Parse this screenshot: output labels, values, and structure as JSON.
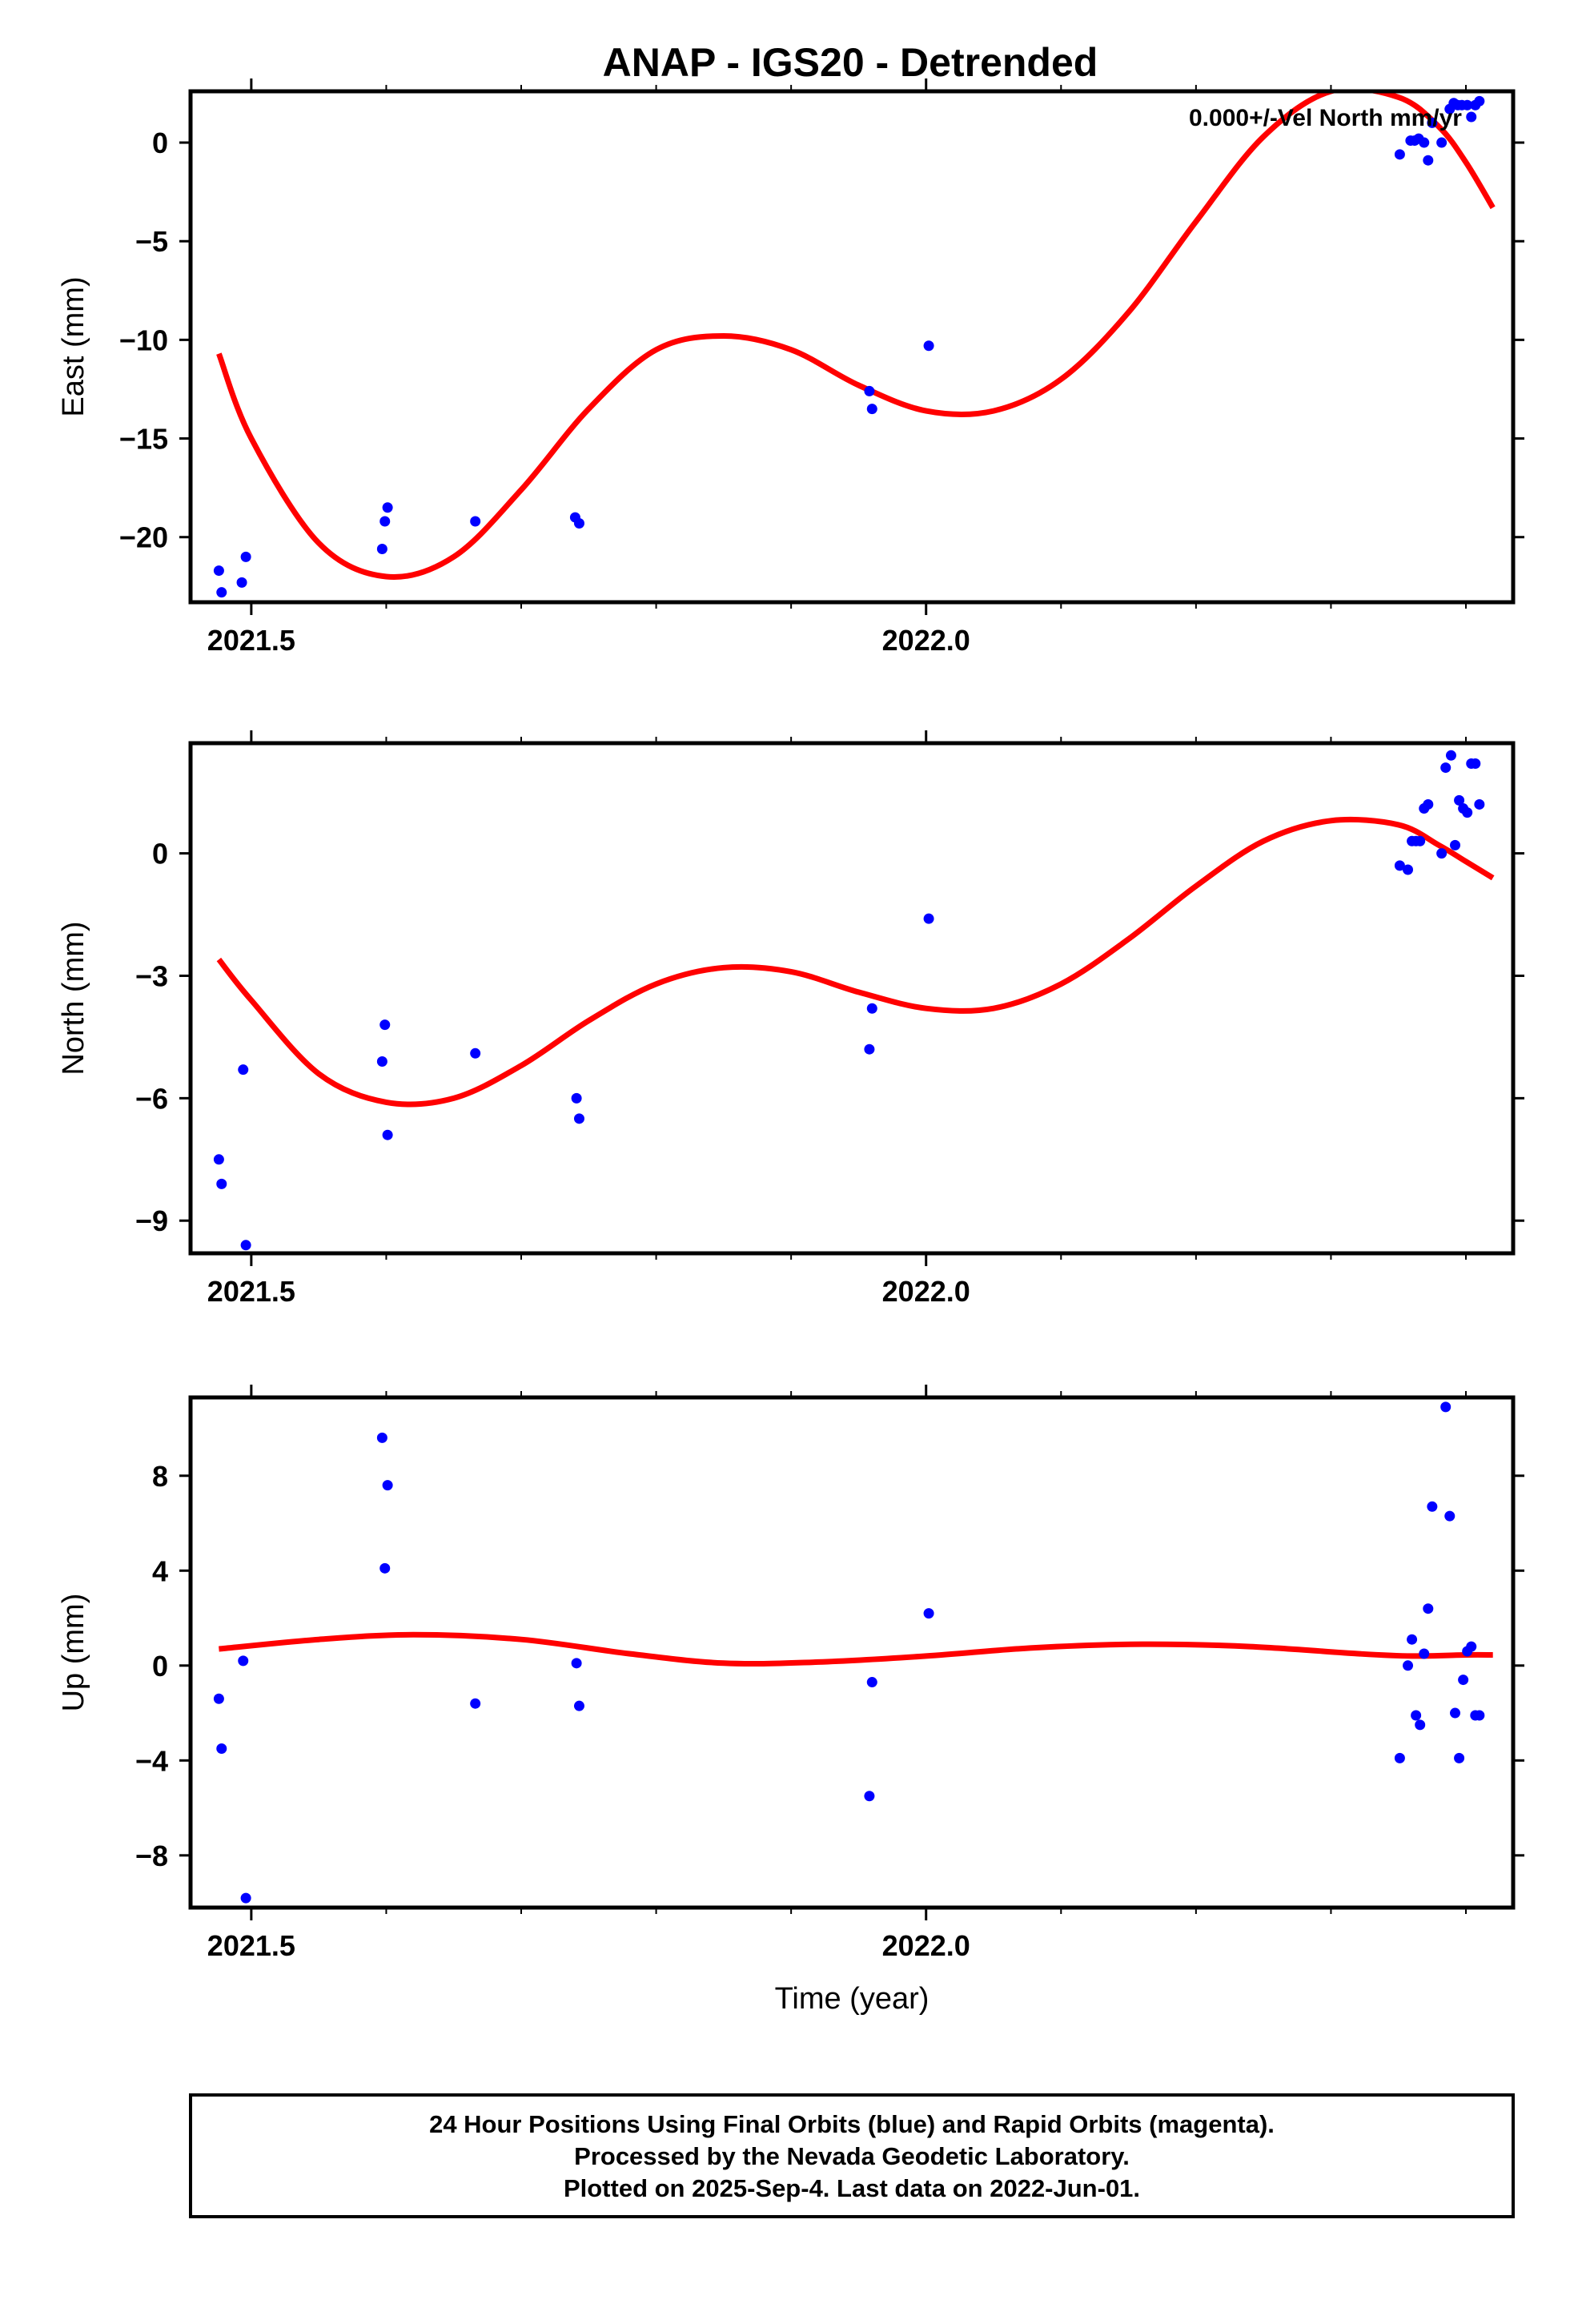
{
  "title": "ANAP - IGS20 - Detrended",
  "xlabel": "Time (year)",
  "footer": {
    "lines": [
      "24 Hour Positions Using Final Orbits (blue) and Rapid Orbits (magenta).",
      "Processed by the Nevada Geodetic Laboratory.",
      "Plotted on 2025-Sep-4. Last data on 2022-Jun-01."
    ]
  },
  "colors": {
    "points": "#0000ff",
    "fit": "#ff0000"
  },
  "chart_data": [
    {
      "type": "scatter",
      "name": "east",
      "ylabel": "East (mm)",
      "annotation": "0.000+/-Vel North mm/yr",
      "xlim": [
        2021.455,
        2022.435
      ],
      "ylim": [
        -23.3,
        2.6
      ],
      "xticks": [
        2021.5,
        2022.0
      ],
      "xtick_labels": [
        "2021.5",
        "2022.0"
      ],
      "xminor": [
        2021.6,
        2021.7,
        2021.8,
        2021.9,
        2022.1,
        2022.2,
        2022.3,
        2022.4
      ],
      "yticks": [
        0,
        -5,
        -10,
        -15,
        -20
      ],
      "ytick_labels": [
        "0",
        "−5",
        "−10",
        "−15",
        "−20"
      ],
      "points": [
        [
          2021.476,
          -21.7
        ],
        [
          2021.478,
          -22.8
        ],
        [
          2021.493,
          -22.3
        ],
        [
          2021.496,
          -21.0
        ],
        [
          2021.597,
          -20.6
        ],
        [
          2021.599,
          -19.2
        ],
        [
          2021.601,
          -18.5
        ],
        [
          2021.666,
          -19.2
        ],
        [
          2021.74,
          -19.0
        ],
        [
          2021.743,
          -19.3
        ],
        [
          2021.958,
          -12.6
        ],
        [
          2021.96,
          -13.5
        ],
        [
          2022.002,
          -10.3
        ],
        [
          2022.351,
          -0.6
        ],
        [
          2022.359,
          0.1
        ],
        [
          2022.362,
          0.1
        ],
        [
          2022.365,
          0.2
        ],
        [
          2022.369,
          0.0
        ],
        [
          2022.372,
          -0.9
        ],
        [
          2022.375,
          1.0
        ],
        [
          2022.382,
          0.0
        ],
        [
          2022.388,
          1.7
        ],
        [
          2022.391,
          2.0
        ],
        [
          2022.394,
          1.9
        ],
        [
          2022.397,
          1.9
        ],
        [
          2022.401,
          1.9
        ],
        [
          2022.404,
          1.3
        ],
        [
          2022.407,
          1.9
        ],
        [
          2022.41,
          2.1
        ]
      ],
      "fit": [
        [
          2021.476,
          -10.7
        ],
        [
          2021.5,
          -15.0
        ],
        [
          2021.55,
          -20.3
        ],
        [
          2021.6,
          -22.0
        ],
        [
          2021.65,
          -21.0
        ],
        [
          2021.7,
          -17.6
        ],
        [
          2021.75,
          -13.5
        ],
        [
          2021.8,
          -10.5
        ],
        [
          2021.85,
          -9.8
        ],
        [
          2021.9,
          -10.5
        ],
        [
          2021.95,
          -12.3
        ],
        [
          2022.0,
          -13.6
        ],
        [
          2022.05,
          -13.6
        ],
        [
          2022.1,
          -12.0
        ],
        [
          2022.15,
          -8.6
        ],
        [
          2022.2,
          -4.0
        ],
        [
          2022.25,
          0.3
        ],
        [
          2022.3,
          2.6
        ],
        [
          2022.35,
          2.3
        ],
        [
          2022.38,
          0.8
        ],
        [
          2022.4,
          -1.0
        ],
        [
          2022.42,
          -3.3
        ]
      ]
    },
    {
      "type": "scatter",
      "name": "north",
      "ylabel": "North (mm)",
      "xlim": [
        2021.455,
        2022.435
      ],
      "ylim": [
        -9.8,
        2.7
      ],
      "xticks": [
        2021.5,
        2022.0
      ],
      "xtick_labels": [
        "2021.5",
        "2022.0"
      ],
      "xminor": [
        2021.6,
        2021.7,
        2021.8,
        2021.9,
        2022.1,
        2022.2,
        2022.3,
        2022.4
      ],
      "yticks": [
        0,
        -3,
        -6,
        -9
      ],
      "ytick_labels": [
        "0",
        "−3",
        "−6",
        "−9"
      ],
      "points": [
        [
          2021.476,
          -7.5
        ],
        [
          2021.478,
          -8.1
        ],
        [
          2021.494,
          -5.3
        ],
        [
          2021.496,
          -9.6
        ],
        [
          2021.597,
          -5.1
        ],
        [
          2021.599,
          -4.2
        ],
        [
          2021.601,
          -6.9
        ],
        [
          2021.666,
          -4.9
        ],
        [
          2021.741,
          -6.0
        ],
        [
          2021.743,
          -6.5
        ],
        [
          2021.958,
          -4.8
        ],
        [
          2021.96,
          -3.8
        ],
        [
          2022.002,
          -1.6
        ],
        [
          2022.351,
          -0.3
        ],
        [
          2022.357,
          -0.4
        ],
        [
          2022.36,
          0.3
        ],
        [
          2022.363,
          0.3
        ],
        [
          2022.366,
          0.3
        ],
        [
          2022.369,
          1.1
        ],
        [
          2022.372,
          1.2
        ],
        [
          2022.382,
          0.0
        ],
        [
          2022.385,
          2.1
        ],
        [
          2022.389,
          2.4
        ],
        [
          2022.392,
          0.2
        ],
        [
          2022.395,
          1.3
        ],
        [
          2022.398,
          1.1
        ],
        [
          2022.401,
          1.0
        ],
        [
          2022.404,
          2.2
        ],
        [
          2022.407,
          2.2
        ],
        [
          2022.41,
          1.2
        ]
      ],
      "fit": [
        [
          2021.476,
          -2.6
        ],
        [
          2021.5,
          -3.6
        ],
        [
          2021.55,
          -5.4
        ],
        [
          2021.6,
          -6.1
        ],
        [
          2021.65,
          -6.0
        ],
        [
          2021.7,
          -5.2
        ],
        [
          2021.75,
          -4.1
        ],
        [
          2021.8,
          -3.2
        ],
        [
          2021.85,
          -2.8
        ],
        [
          2021.9,
          -2.9
        ],
        [
          2021.95,
          -3.4
        ],
        [
          2022.0,
          -3.8
        ],
        [
          2022.05,
          -3.8
        ],
        [
          2022.1,
          -3.2
        ],
        [
          2022.15,
          -2.1
        ],
        [
          2022.2,
          -0.8
        ],
        [
          2022.25,
          0.3
        ],
        [
          2022.3,
          0.8
        ],
        [
          2022.35,
          0.7
        ],
        [
          2022.38,
          0.2
        ],
        [
          2022.4,
          -0.2
        ],
        [
          2022.42,
          -0.6
        ]
      ]
    },
    {
      "type": "scatter",
      "name": "up",
      "ylabel": "Up (mm)",
      "xlim": [
        2021.455,
        2022.435
      ],
      "ylim": [
        -10.2,
        11.3
      ],
      "xticks": [
        2021.5,
        2022.0
      ],
      "xtick_labels": [
        "2021.5",
        "2022.0"
      ],
      "xminor": [
        2021.6,
        2021.7,
        2021.8,
        2021.9,
        2022.1,
        2022.2,
        2022.3,
        2022.4
      ],
      "yticks": [
        8,
        4,
        0,
        -4,
        -8
      ],
      "ytick_labels": [
        "8",
        "4",
        "0",
        "−4",
        "−8"
      ],
      "points": [
        [
          2021.476,
          -1.4
        ],
        [
          2021.478,
          -3.5
        ],
        [
          2021.494,
          0.2
        ],
        [
          2021.496,
          -9.8
        ],
        [
          2021.597,
          9.6
        ],
        [
          2021.599,
          4.1
        ],
        [
          2021.601,
          7.6
        ],
        [
          2021.666,
          -1.6
        ],
        [
          2021.741,
          0.1
        ],
        [
          2021.743,
          -1.7
        ],
        [
          2021.958,
          -5.5
        ],
        [
          2021.96,
          -0.7
        ],
        [
          2022.002,
          2.2
        ],
        [
          2022.351,
          -3.9
        ],
        [
          2022.357,
          0.0
        ],
        [
          2022.36,
          1.1
        ],
        [
          2022.363,
          -2.1
        ],
        [
          2022.366,
          -2.5
        ],
        [
          2022.369,
          0.5
        ],
        [
          2022.372,
          2.4
        ],
        [
          2022.375,
          6.7
        ],
        [
          2022.385,
          10.9
        ],
        [
          2022.388,
          6.3
        ],
        [
          2022.392,
          -2.0
        ],
        [
          2022.395,
          -3.9
        ],
        [
          2022.398,
          -0.6
        ],
        [
          2022.401,
          0.6
        ],
        [
          2022.404,
          0.8
        ],
        [
          2022.407,
          -2.1
        ],
        [
          2022.41,
          -2.1
        ]
      ],
      "fit": [
        [
          2021.476,
          0.7
        ],
        [
          2021.55,
          1.1
        ],
        [
          2021.62,
          1.3
        ],
        [
          2021.7,
          1.1
        ],
        [
          2021.78,
          0.5
        ],
        [
          2021.85,
          0.1
        ],
        [
          2021.92,
          0.15
        ],
        [
          2022.0,
          0.4
        ],
        [
          2022.08,
          0.75
        ],
        [
          2022.16,
          0.9
        ],
        [
          2022.24,
          0.8
        ],
        [
          2022.32,
          0.5
        ],
        [
          2022.36,
          0.4
        ],
        [
          2022.4,
          0.45
        ],
        [
          2022.42,
          0.45
        ]
      ]
    }
  ]
}
